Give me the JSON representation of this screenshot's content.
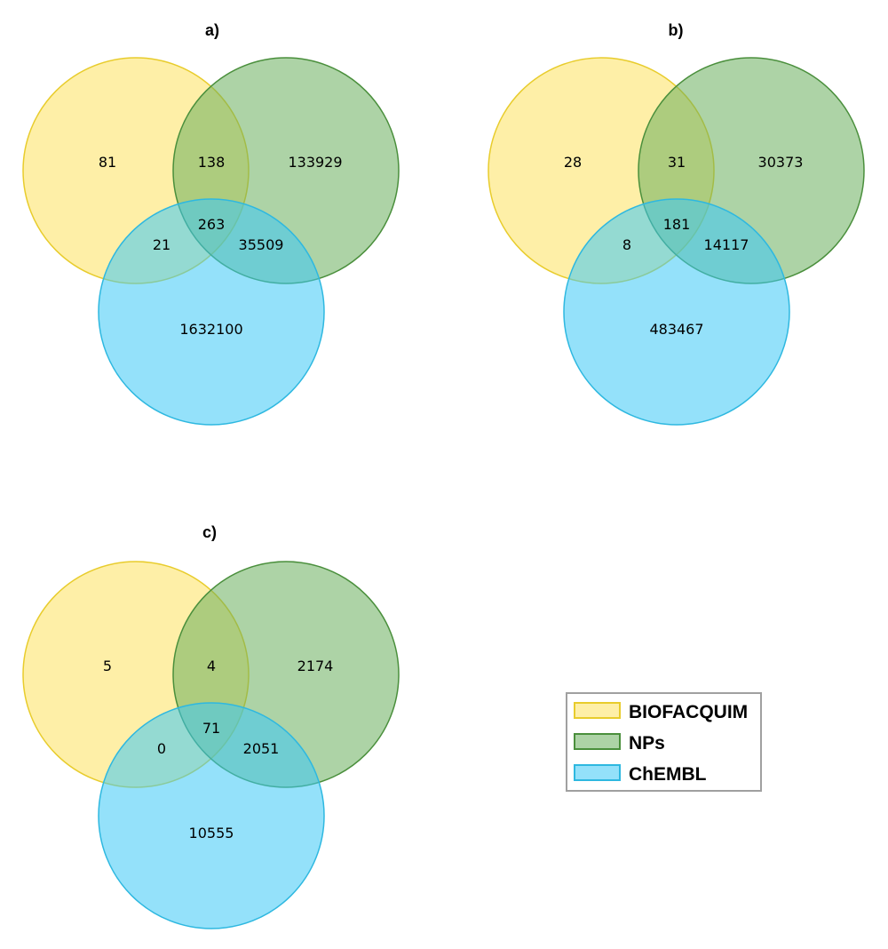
{
  "sets": [
    {
      "name": "BIOFACQUIM",
      "fill": "#fde25f",
      "stroke": "#e8cc2c"
    },
    {
      "name": "NPs",
      "fill": "#6aaf5c",
      "stroke": "#4a8f3c"
    },
    {
      "name": "ChEMBL",
      "fill": "#3cc8f5",
      "stroke": "#2eb8e0"
    }
  ],
  "panels": [
    {
      "title": "a)",
      "regions": {
        "only_a": "81",
        "ab": "138",
        "only_b": "133929",
        "ac": "21",
        "abc": "263",
        "bc": "35509",
        "only_c": "1632100"
      }
    },
    {
      "title": "b)",
      "regions": {
        "only_a": "28",
        "ab": "31",
        "only_b": "30373",
        "ac": "8",
        "abc": "181",
        "bc": "14117",
        "only_c": "483467"
      }
    },
    {
      "title": "c)",
      "regions": {
        "only_a": "5",
        "ab": "4",
        "only_b": "2174",
        "ac": "0",
        "abc": "71",
        "bc": "2051",
        "only_c": "10555"
      }
    }
  ],
  "legend": {
    "items": [
      {
        "label": "BIOFACQUIM",
        "fill": "#fde25f",
        "stroke": "#e8cc2c"
      },
      {
        "label": "NPs",
        "fill": "#6aaf5c",
        "stroke": "#4a8f3c"
      },
      {
        "label": "ChEMBL",
        "fill": "#3cc8f5",
        "stroke": "#2eb8e0"
      }
    ]
  }
}
